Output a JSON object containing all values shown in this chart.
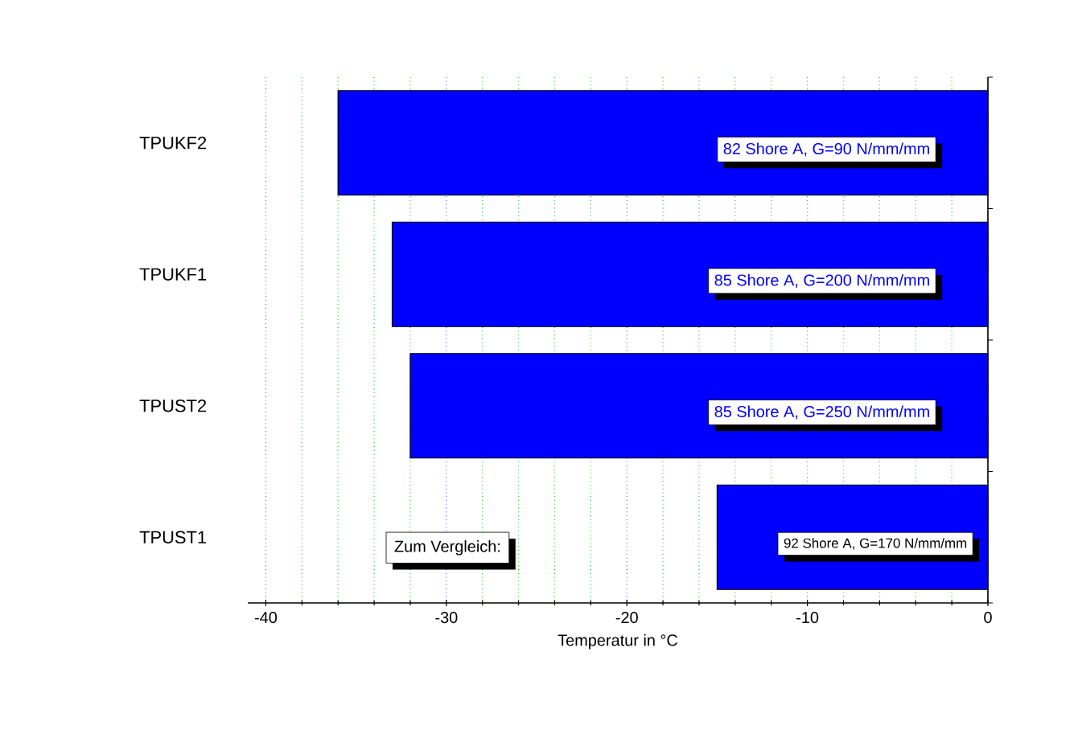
{
  "chart_data": {
    "type": "bar",
    "orientation": "horizontal",
    "xlabel": "Temperatur in °C",
    "categories": [
      "TPUKF2",
      "TPUKF1",
      "TPUST2",
      "TPUST1"
    ],
    "values": [
      -36,
      -33,
      -32,
      -15
    ],
    "color": "#0000ff",
    "xlim": [
      -41,
      0
    ],
    "xticks": [
      -40,
      {
        "value": -38,
        "label": null
      },
      {
        "value": -36,
        "label": null
      },
      {
        "value": -34,
        "label": null
      },
      {
        "value": -32,
        "label": null
      },
      -30,
      {
        "value": -28,
        "label": null
      },
      {
        "value": -26,
        "label": null
      },
      {
        "value": -24,
        "label": null
      },
      {
        "value": -22,
        "label": null
      },
      -20,
      {
        "value": -18,
        "label": null
      },
      {
        "value": -16,
        "label": null
      },
      {
        "value": -14,
        "label": null
      },
      {
        "value": -12,
        "label": null
      },
      -10,
      {
        "value": -8,
        "label": null
      },
      {
        "value": -6,
        "label": null
      },
      {
        "value": -4,
        "label": null
      },
      {
        "value": -2,
        "label": null
      },
      0
    ],
    "grid": "x",
    "annotations": [
      "82 Shore A, G=90 N/mm/mm",
      "85 Shore A, G=200 N/mm/mm",
      "85 Shore A, G=250 N/mm/mm",
      "92 Shore A, G=170 N/mm/mm",
      "Zum Vergleich:"
    ]
  }
}
